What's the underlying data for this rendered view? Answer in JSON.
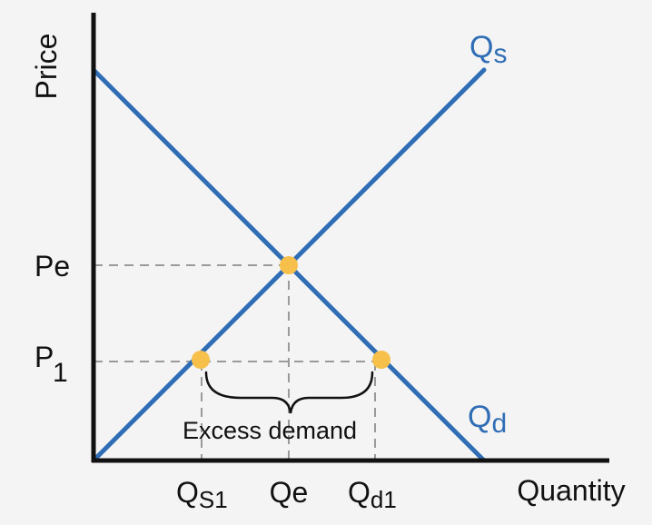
{
  "chart_data": {
    "type": "supply-demand-diagram",
    "axes": {
      "y_label": "Price",
      "x_label": "Quantity"
    },
    "curves": [
      {
        "name_main": "Q",
        "name_sub": "s",
        "direction": "upward-sloping"
      },
      {
        "name_main": "Q",
        "name_sub": "d",
        "direction": "downward-sloping"
      }
    ],
    "y_ticks": [
      {
        "main": "Pe",
        "sub": ""
      },
      {
        "main": "P",
        "sub": "1"
      }
    ],
    "x_ticks": [
      {
        "main": "Q",
        "sub": "S1"
      },
      {
        "main": "Qe",
        "sub": ""
      },
      {
        "main": "Q",
        "sub": "d1"
      }
    ],
    "annotation": "Excess demand"
  },
  "colors": {
    "background": "#f4f4f4",
    "axis": "#111111",
    "curve": "#2f6db5",
    "point": "#f6c04a",
    "guide": "#9a9a9a",
    "text": "#111111"
  }
}
